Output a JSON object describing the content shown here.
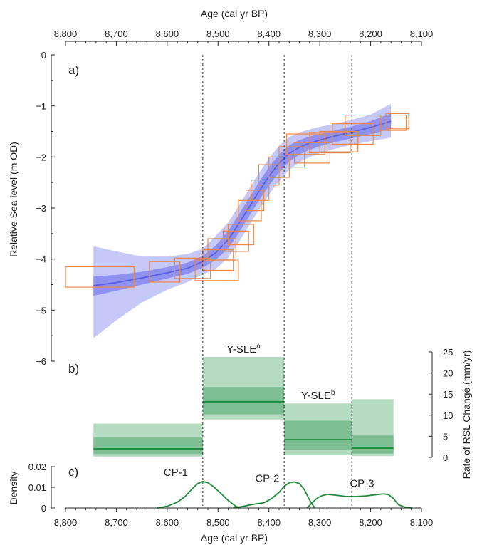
{
  "chart_data": [
    {
      "type": "line",
      "panel_label": "a)",
      "top_xlabel": "Age (cal yr BP)",
      "ylabel": "Relative Sea level (m OD)",
      "xlim": [
        8800,
        8100
      ],
      "ylim": [
        -6,
        0
      ],
      "x_ticks": [
        8800,
        8700,
        8600,
        8500,
        8400,
        8300,
        8200,
        8100
      ],
      "x_tick_labels": [
        "8,800",
        "8,700",
        "8,600",
        "8,500",
        "8,400",
        "8,300",
        "8,200",
        "8,100"
      ],
      "y_ticks": [
        0,
        -1,
        -2,
        -3,
        -4,
        -5,
        -6
      ],
      "y_tick_labels": [
        "0",
        "−1",
        "−2",
        "−3",
        "−4",
        "−5",
        "−6"
      ],
      "series": [
        {
          "x": [
            8745,
            8700,
            8650,
            8600,
            8560,
            8530,
            8505,
            8480,
            8460,
            8440,
            8420,
            8400,
            8380,
            8360,
            8340,
            8320,
            8300,
            8270,
            8240,
            8200,
            8160
          ],
          "y": [
            -4.52,
            -4.46,
            -4.37,
            -4.27,
            -4.18,
            -4.05,
            -3.88,
            -3.62,
            -3.32,
            -3.0,
            -2.68,
            -2.38,
            -2.12,
            -1.93,
            -1.81,
            -1.73,
            -1.67,
            -1.59,
            -1.52,
            -1.42,
            -1.3
          ],
          "band68": [
            [
              -4.72,
              -4.34
            ],
            [
              -4.62,
              -4.31
            ],
            [
              -4.5,
              -4.25
            ],
            [
              -4.38,
              -4.16
            ],
            [
              -4.29,
              -4.07
            ],
            [
              -4.17,
              -3.94
            ],
            [
              -4.02,
              -3.74
            ],
            [
              -3.79,
              -3.45
            ],
            [
              -3.5,
              -3.14
            ],
            [
              -3.18,
              -2.82
            ],
            [
              -2.86,
              -2.5
            ],
            [
              -2.56,
              -2.2
            ],
            [
              -2.3,
              -1.95
            ],
            [
              -2.09,
              -1.77
            ],
            [
              -1.95,
              -1.67
            ],
            [
              -1.86,
              -1.6
            ],
            [
              -1.79,
              -1.55
            ],
            [
              -1.71,
              -1.48
            ],
            [
              -1.64,
              -1.41
            ],
            [
              -1.55,
              -1.3
            ],
            [
              -1.45,
              -1.15
            ]
          ],
          "band95": [
            [
              -5.55,
              -3.75
            ],
            [
              -5.2,
              -3.85
            ],
            [
              -4.85,
              -3.95
            ],
            [
              -4.6,
              -3.95
            ],
            [
              -4.45,
              -3.9
            ],
            [
              -4.3,
              -3.8
            ],
            [
              -4.2,
              -3.55
            ],
            [
              -3.97,
              -3.28
            ],
            [
              -3.68,
              -2.97
            ],
            [
              -3.36,
              -2.64
            ],
            [
              -3.04,
              -2.32
            ],
            [
              -2.74,
              -2.03
            ],
            [
              -2.47,
              -1.78
            ],
            [
              -2.25,
              -1.61
            ],
            [
              -2.1,
              -1.52
            ],
            [
              -2.0,
              -1.46
            ],
            [
              -1.93,
              -1.41
            ],
            [
              -1.84,
              -1.35
            ],
            [
              -1.77,
              -1.28
            ],
            [
              -1.69,
              -1.17
            ],
            [
              -1.62,
              -0.96
            ]
          ]
        }
      ],
      "index_points": [
        {
          "x": [
            8800,
            8665
          ],
          "y": [
            -4.55,
            -4.15
          ]
        },
        {
          "x": [
            8635,
            8575
          ],
          "y": [
            -4.45,
            -4.05
          ]
        },
        {
          "x": [
            8585,
            8515
          ],
          "y": [
            -4.38,
            -3.98
          ]
        },
        {
          "x": [
            8530,
            8470
          ],
          "y": [
            -4.22,
            -3.82
          ]
        },
        {
          "x": [
            8545,
            8460
          ],
          "y": [
            -4.42,
            -4.02
          ]
        },
        {
          "x": [
            8520,
            8465
          ],
          "y": [
            -4.0,
            -3.6
          ]
        },
        {
          "x": [
            8490,
            8440
          ],
          "y": [
            -3.85,
            -3.45
          ]
        },
        {
          "x": [
            8480,
            8430
          ],
          "y": [
            -3.72,
            -3.32
          ]
        },
        {
          "x": [
            8460,
            8415
          ],
          "y": [
            -3.25,
            -2.85
          ]
        },
        {
          "x": [
            8445,
            8410
          ],
          "y": [
            -3.05,
            -2.65
          ]
        },
        {
          "x": [
            8435,
            8400
          ],
          "y": [
            -2.85,
            -2.45
          ]
        },
        {
          "x": [
            8420,
            8380
          ],
          "y": [
            -2.55,
            -2.15
          ]
        },
        {
          "x": [
            8400,
            8360
          ],
          "y": [
            -2.4,
            -2.0
          ]
        },
        {
          "x": [
            8380,
            8330
          ],
          "y": [
            -2.2,
            -1.8
          ]
        },
        {
          "x": [
            8365,
            8290
          ],
          "y": [
            -1.95,
            -1.55
          ]
        },
        {
          "x": [
            8350,
            8280
          ],
          "y": [
            -2.12,
            -1.72
          ]
        },
        {
          "x": [
            8320,
            8240
          ],
          "y": [
            -1.92,
            -1.52
          ]
        },
        {
          "x": [
            8300,
            8225
          ],
          "y": [
            -1.9,
            -1.5
          ]
        },
        {
          "x": [
            8275,
            8195
          ],
          "y": [
            -1.75,
            -1.35
          ]
        },
        {
          "x": [
            8250,
            8180
          ],
          "y": [
            -1.58,
            -1.18
          ]
        },
        {
          "x": [
            8180,
            8130
          ],
          "y": [
            -1.48,
            -1.18
          ]
        },
        {
          "x": [
            8170,
            8125
          ],
          "y": [
            -1.45,
            -1.15
          ]
        }
      ]
    },
    {
      "type": "bar",
      "panel_label": "b)",
      "ylabel": "Rate of RSL Change (mm/yr)",
      "ylim": [
        0,
        25
      ],
      "y_ticks": [
        0,
        5,
        10,
        15,
        20,
        25
      ],
      "y_tick_labels": [
        "0",
        "5",
        "10",
        "15",
        "20",
        "25"
      ],
      "segments": [
        {
          "x": [
            8745,
            8530
          ],
          "median": 2.0,
          "band68": [
            0.8,
            4.8
          ],
          "band95": [
            0.2,
            8.0
          ],
          "label": ""
        },
        {
          "x": [
            8530,
            8370
          ],
          "median": 13.2,
          "band68": [
            10.2,
            16.7
          ],
          "band95": [
            9.0,
            23.8
          ],
          "label": "Y-SLE",
          "label_sup": "a"
        },
        {
          "x": [
            8370,
            8237
          ],
          "median": 4.2,
          "band68": [
            1.8,
            8.7
          ],
          "band95": [
            0.5,
            12.8
          ],
          "label": "Y-SLE",
          "label_sup": "b"
        },
        {
          "x": [
            8237,
            8155
          ],
          "median": 2.2,
          "band68": [
            0.9,
            5.2
          ],
          "band95": [
            0.3,
            13.8
          ],
          "label": ""
        }
      ]
    },
    {
      "type": "line",
      "panel_label": "c)",
      "ylabel": "Density",
      "xlabel": "Age (cal yr BP)",
      "xlim": [
        8800,
        8100
      ],
      "ylim": [
        0,
        0.02
      ],
      "x_ticks": [
        8800,
        8700,
        8600,
        8500,
        8400,
        8300,
        8200,
        8100
      ],
      "x_tick_labels": [
        "8,800",
        "8,700",
        "8,600",
        "8,500",
        "8,400",
        "8,300",
        "8,200",
        "8,100"
      ],
      "y_ticks": [
        0,
        0.01,
        0.02
      ],
      "y_tick_labels": [
        "0",
        "0.01",
        "0.02"
      ],
      "series": [
        {
          "name": "CP-1",
          "x": [
            8620,
            8600,
            8580,
            8565,
            8550,
            8540,
            8530,
            8520,
            8510,
            8495,
            8480,
            8465,
            8455
          ],
          "y": [
            0,
            0.0008,
            0.0028,
            0.0055,
            0.0095,
            0.0118,
            0.0128,
            0.0122,
            0.0105,
            0.0072,
            0.0036,
            0.0008,
            0
          ]
        },
        {
          "name": "CP-2",
          "x": [
            8470,
            8450,
            8430,
            8410,
            8395,
            8380,
            8370,
            8360,
            8350,
            8340,
            8330,
            8320,
            8310
          ],
          "y": [
            0,
            0.0008,
            0.0018,
            0.0025,
            0.0045,
            0.0075,
            0.0105,
            0.0122,
            0.0126,
            0.0118,
            0.0088,
            0.0038,
            0
          ]
        },
        {
          "name": "CP-3",
          "x": [
            8325,
            8315,
            8305,
            8295,
            8285,
            8270,
            8250,
            8230,
            8210,
            8190,
            8175,
            8165,
            8155,
            8145,
            8130,
            8120
          ],
          "y": [
            0,
            0.0025,
            0.0048,
            0.006,
            0.0066,
            0.0062,
            0.0056,
            0.0055,
            0.0058,
            0.0064,
            0.0068,
            0.0065,
            0.0045,
            0.0015,
            0.0002,
            0
          ]
        }
      ]
    }
  ],
  "changepoints": [
    8530,
    8370,
    8237
  ],
  "colors": {
    "rsl_line": "#5a5ee0",
    "rsl_band68": "#8487ee",
    "rsl_band95": "#c6c8f8",
    "index_box": "#e8894a",
    "rate_band95": "#b5dbc0",
    "rate_band68": "#6cb585",
    "rate_line": "#1f8a3b",
    "density_line": "#1f8a3b"
  }
}
